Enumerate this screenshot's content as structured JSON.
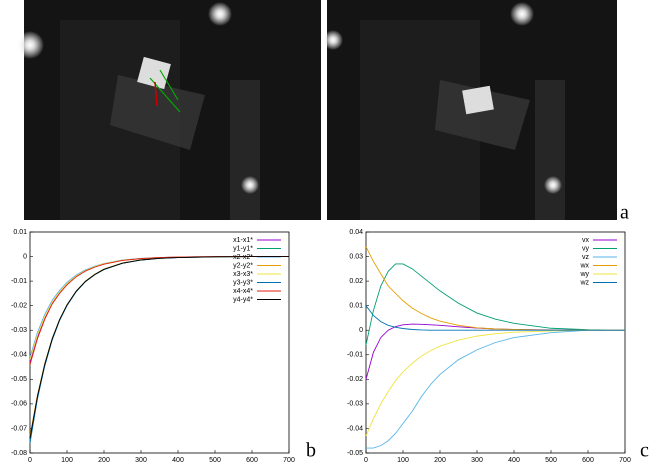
{
  "panel_labels": [
    "a",
    "b",
    "c"
  ],
  "chart_data": [
    {
      "type": "line",
      "legend": "top-right",
      "grid": false,
      "x": [
        0,
        20,
        40,
        60,
        80,
        100,
        125,
        150,
        175,
        200,
        250,
        300,
        350,
        400,
        500,
        600,
        700
      ],
      "xlim": [
        0,
        700
      ],
      "xticks": [
        0,
        100,
        200,
        300,
        400,
        500,
        600,
        700
      ],
      "ylim": [
        -0.08,
        0.01
      ],
      "yticks": [
        -0.08,
        -0.07,
        -0.06,
        -0.05,
        -0.04,
        -0.03,
        -0.02,
        -0.01,
        0,
        0.01
      ],
      "series": [
        {
          "name": "x1-x1*",
          "color": "#9400d3",
          "values": [
            -0.043,
            -0.033,
            -0.025,
            -0.019,
            -0.0148,
            -0.0113,
            -0.0081,
            -0.0058,
            -0.0042,
            -0.003,
            -0.0015,
            -0.0008,
            -0.0004,
            -0.0002,
            0,
            0,
            0
          ]
        },
        {
          "name": "y1-y1*",
          "color": "#009e73",
          "values": [
            -0.075,
            -0.0575,
            -0.044,
            -0.0337,
            -0.0258,
            -0.0198,
            -0.0142,
            -0.0101,
            -0.0073,
            -0.0052,
            -0.0027,
            -0.0014,
            -0.0007,
            -0.0004,
            -0.0001,
            0,
            0
          ]
        },
        {
          "name": "x2-x2*",
          "color": "#56b4e9",
          "values": [
            -0.041,
            -0.031,
            -0.0235,
            -0.0178,
            -0.0138,
            -0.0105,
            -0.0075,
            -0.0054,
            -0.0039,
            -0.0028,
            -0.0014,
            -0.0007,
            -0.0004,
            -0.0002,
            0,
            0,
            0
          ]
        },
        {
          "name": "y2-y2*",
          "color": "#e69f00",
          "values": [
            -0.073,
            -0.0565,
            -0.0435,
            -0.0333,
            -0.0256,
            -0.0196,
            -0.014,
            -0.01,
            -0.0072,
            -0.0051,
            -0.0026,
            -0.0013,
            -0.0007,
            -0.0003,
            -0.0001,
            0,
            0
          ]
        },
        {
          "name": "x3-x3*",
          "color": "#f0e442",
          "values": [
            -0.042,
            -0.032,
            -0.0245,
            -0.0186,
            -0.0144,
            -0.011,
            -0.0079,
            -0.0057,
            -0.0041,
            -0.0029,
            -0.0015,
            -0.0008,
            -0.0004,
            -0.0002,
            0,
            0,
            0
          ]
        },
        {
          "name": "y3-y3*",
          "color": "#0072b2",
          "values": [
            -0.076,
            -0.058,
            -0.0445,
            -0.034,
            -0.026,
            -0.02,
            -0.0143,
            -0.0102,
            -0.0074,
            -0.0053,
            -0.0027,
            -0.0014,
            -0.0007,
            -0.0004,
            -0.0001,
            0,
            0
          ]
        },
        {
          "name": "x4-x4*",
          "color": "#e51e10",
          "values": [
            -0.044,
            -0.0335,
            -0.0255,
            -0.0193,
            -0.015,
            -0.0115,
            -0.0082,
            -0.0059,
            -0.0043,
            -0.0031,
            -0.0016,
            -0.0008,
            -0.0004,
            -0.0002,
            0,
            0,
            0
          ]
        },
        {
          "name": "y4-y4*",
          "color": "#000000",
          "values": [
            -0.074,
            -0.057,
            -0.0438,
            -0.0335,
            -0.0257,
            -0.0197,
            -0.0141,
            -0.0101,
            -0.0073,
            -0.0052,
            -0.0027,
            -0.0014,
            -0.0007,
            -0.0004,
            -0.0001,
            0,
            0
          ]
        }
      ]
    },
    {
      "type": "line",
      "legend": "top-right",
      "grid": false,
      "x": [
        0,
        20,
        40,
        60,
        80,
        100,
        125,
        150,
        175,
        200,
        250,
        300,
        350,
        400,
        500,
        600,
        700
      ],
      "xlim": [
        0,
        700
      ],
      "xticks": [
        0,
        100,
        200,
        300,
        400,
        500,
        600,
        700
      ],
      "ylim": [
        -0.05,
        0.04
      ],
      "yticks": [
        -0.05,
        -0.04,
        -0.03,
        -0.02,
        -0.01,
        0,
        0.01,
        0.02,
        0.03,
        0.04
      ],
      "series": [
        {
          "name": "vx",
          "color": "#9400d3",
          "values": [
            -0.02,
            -0.009,
            -0.003,
            0,
            0.0015,
            0.0022,
            0.0025,
            0.0024,
            0.0022,
            0.002,
            0.0014,
            0.0009,
            0.0005,
            0.0003,
            0.0001,
            0,
            0
          ]
        },
        {
          "name": "vy",
          "color": "#009e73",
          "values": [
            -0.006,
            0.008,
            0.018,
            0.024,
            0.027,
            0.027,
            0.025,
            0.022,
            0.019,
            0.016,
            0.011,
            0.007,
            0.0045,
            0.0028,
            0.0008,
            0.0002,
            0
          ]
        },
        {
          "name": "vz",
          "color": "#56b4e9",
          "values": [
            -0.048,
            -0.048,
            -0.047,
            -0.045,
            -0.042,
            -0.038,
            -0.033,
            -0.027,
            -0.022,
            -0.018,
            -0.012,
            -0.008,
            -0.005,
            -0.003,
            -0.001,
            0,
            0
          ]
        },
        {
          "name": "wx",
          "color": "#e69f00",
          "values": [
            0.034,
            0.028,
            0.023,
            0.018,
            0.015,
            0.012,
            0.009,
            0.0068,
            0.005,
            0.0037,
            0.002,
            0.001,
            0.0005,
            0.0003,
            0,
            0,
            0
          ]
        },
        {
          "name": "wy",
          "color": "#f0e442",
          "values": [
            -0.043,
            -0.036,
            -0.03,
            -0.025,
            -0.0205,
            -0.017,
            -0.0135,
            -0.0105,
            -0.0083,
            -0.0065,
            -0.004,
            -0.0024,
            -0.0014,
            -0.0008,
            -0.0003,
            0,
            0
          ]
        },
        {
          "name": "wz",
          "color": "#0072b2",
          "values": [
            0.01,
            0.006,
            0.0035,
            0.002,
            0.0012,
            0.0007,
            0.0003,
            0.0001,
            0,
            0,
            0,
            0,
            0,
            0,
            0,
            0,
            0
          ]
        }
      ]
    }
  ]
}
